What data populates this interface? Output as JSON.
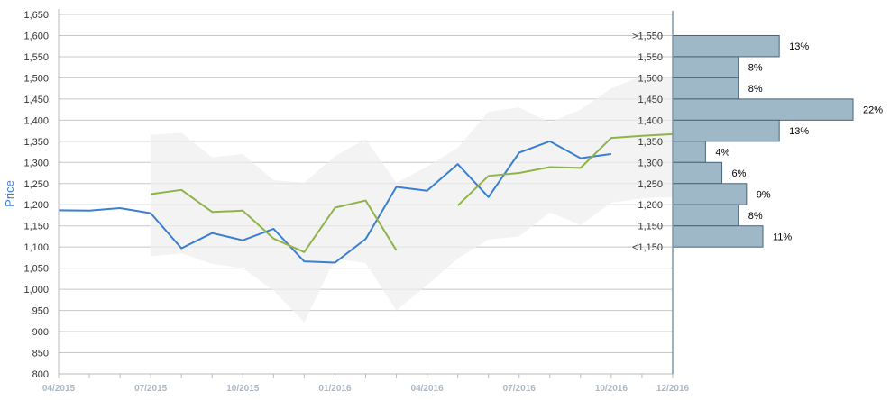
{
  "chart_data": {
    "type": "line",
    "ylabel": "Price",
    "ylim": [
      800,
      1650
    ],
    "yticks": [
      800,
      850,
      900,
      950,
      1000,
      1050,
      1100,
      1150,
      1200,
      1250,
      1300,
      1350,
      1400,
      1450,
      1500,
      1550,
      1600,
      1650
    ],
    "y_tick_labels": [
      "800",
      "850",
      "900",
      "950",
      "1,000",
      "1,050",
      "1,100",
      "1,150",
      "1,200",
      "1,250",
      "1,300",
      "1,350",
      "1,400",
      "1,450",
      "1,500",
      "1,550",
      "1,600",
      "1,650"
    ],
    "x_tick_labels": [
      "04/2015",
      "07/2015",
      "10/2015",
      "01/2016",
      "04/2016",
      "07/2016",
      "10/2016",
      "12/2016"
    ],
    "x_months": [
      "2015-04",
      "2015-05",
      "2015-06",
      "2015-07",
      "2015-08",
      "2015-09",
      "2015-10",
      "2015-11",
      "2015-12",
      "2016-01",
      "2016-02",
      "2016-03",
      "2016-04",
      "2016-05",
      "2016-06",
      "2016-07",
      "2016-08",
      "2016-09",
      "2016-10",
      "2016-11",
      "2016-12"
    ],
    "series": [
      {
        "color": "#3a7fd0",
        "values": [
          1187,
          1186,
          1192,
          1180,
          1097,
          1133,
          1116,
          1143,
          1066,
          1063,
          1119,
          1242,
          1233,
          1296,
          1218,
          1323,
          1350,
          1310,
          1320,
          null,
          null
        ]
      },
      {
        "color": "#8fb34a",
        "values": [
          null,
          null,
          null,
          1225,
          1235,
          1183,
          1186,
          1120,
          1088,
          1193,
          1210,
          1092,
          null,
          1198,
          1268,
          1275,
          1289,
          1287,
          1358,
          1363,
          1367
        ]
      }
    ],
    "range_band": {
      "color": "#eeeeee",
      "upper": [
        null,
        null,
        null,
        1365,
        1370,
        1312,
        1320,
        1258,
        1252,
        1315,
        1355,
        1252,
        1290,
        1335,
        1420,
        1430,
        1395,
        1425,
        1475,
        1505,
        1500
      ],
      "lower": [
        null,
        null,
        null,
        1078,
        1085,
        1060,
        1050,
        997,
        922,
        1072,
        1062,
        950,
        1010,
        1073,
        1118,
        1125,
        1182,
        1152,
        1205,
        1215,
        1218
      ]
    },
    "histogram": {
      "color": "#9fb8c8",
      "bins": [
        ">1,550",
        "1,550",
        "1,500",
        "1,450",
        "1,400",
        "1,350",
        "1,300",
        "1,250",
        "1,200",
        "1,150",
        "<1,150"
      ],
      "bin_edges": [
        1600,
        1550,
        1500,
        1450,
        1400,
        1350,
        1300,
        1250,
        1200,
        1150,
        1100
      ],
      "percent_values": [
        13,
        8,
        8,
        22,
        13,
        4,
        6,
        9,
        8,
        11
      ],
      "percent_labels": [
        "13%",
        "8%",
        "8%",
        "22%",
        "13%",
        "4%",
        "6%",
        "9%",
        "8%",
        "11%"
      ]
    }
  }
}
